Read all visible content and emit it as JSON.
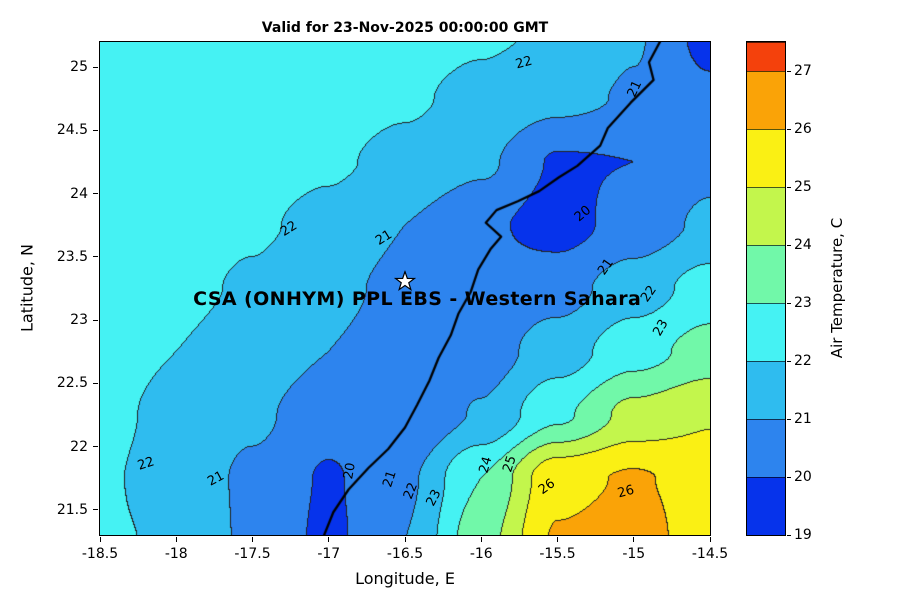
{
  "title": "Valid for 23-Nov-2025 00:00:00 GMT",
  "axes": {
    "xlabel": "Longitude, E",
    "ylabel": "Latitude, N",
    "xtick_values": [
      -18.5,
      -18,
      -17.5,
      -17,
      -16.5,
      -16,
      -15.5,
      -15,
      -14.5
    ],
    "xtick_labels": [
      "-18.5",
      "-18",
      "-17.5",
      "-17",
      "-16.5",
      "-16",
      "-15.5",
      "-15",
      "-14.5"
    ],
    "ytick_values": [
      21.5,
      22,
      22.5,
      23,
      23.5,
      24,
      24.5,
      25
    ],
    "ytick_labels": [
      "21.5",
      "22",
      "22.5",
      "23",
      "23.5",
      "24",
      "24.5",
      "25"
    ]
  },
  "annotation": {
    "text": "CSA (ONHYM) PPL EBS - Western Sahara",
    "lon": -16.42,
    "lat": 23.17,
    "marker": "white-star",
    "marker_lon": -16.5,
    "marker_lat": 23.3
  },
  "colorbar": {
    "label": "Air Temperature, C",
    "range": [
      19,
      27.5
    ],
    "tick_values": [
      19,
      20,
      21,
      22,
      23,
      24,
      25,
      26,
      27
    ],
    "tick_labels": [
      "19",
      "20",
      "21",
      "22",
      "23",
      "24",
      "25",
      "26",
      "27"
    ],
    "cells": [
      {
        "from": 19,
        "to": 20,
        "color": "#0633EB"
      },
      {
        "from": 20,
        "to": 21,
        "color": "#2D84EE"
      },
      {
        "from": 21,
        "to": 22,
        "color": "#2FBCEF"
      },
      {
        "from": 22,
        "to": 23,
        "color": "#45F2F3"
      },
      {
        "from": 23,
        "to": 24,
        "color": "#71F8A9"
      },
      {
        "from": 24,
        "to": 25,
        "color": "#C3F64C"
      },
      {
        "from": 25,
        "to": 26,
        "color": "#FAF014"
      },
      {
        "from": 26,
        "to": 27,
        "color": "#FAA307"
      },
      {
        "from": 27,
        "to": 27.5,
        "color": "#F4410C"
      }
    ]
  },
  "chart_data": {
    "type": "heatmap",
    "subtype": "filled_contour",
    "title": "Valid for 23-Nov-2025 00:00:00 GMT",
    "xlabel": "Longitude, E",
    "ylabel": "Latitude, N",
    "zlabel": "Air Temperature, C",
    "xlim": [
      -18.5,
      -14.5
    ],
    "ylim": [
      21.3,
      25.2
    ],
    "contour_levels": [
      19,
      20,
      21,
      22,
      23,
      24,
      25,
      26,
      27
    ],
    "band_colors": [
      "#0633EB",
      "#2D84EE",
      "#2FBCEF",
      "#45F2F3",
      "#71F8A9",
      "#C3F64C",
      "#FAF014",
      "#FAA307",
      "#F4410C"
    ],
    "contour_line_color": "#222222",
    "grid": {
      "lons": [
        -18.5,
        -18,
        -17.5,
        -17,
        -16.5,
        -16,
        -15.5,
        -15,
        -14.5
      ],
      "lats": [
        25.25,
        24.75,
        24.25,
        23.75,
        23.25,
        22.75,
        22.25,
        21.75,
        21.25
      ],
      "temps_c": [
        [
          22.7,
          22.6,
          22.5,
          22.4,
          22.3,
          22.1,
          21.9,
          21.1,
          19.7
        ],
        [
          22.6,
          22.5,
          22.4,
          22.3,
          22.1,
          21.8,
          21.3,
          20.9,
          20.2
        ],
        [
          22.6,
          22.5,
          22.3,
          22.1,
          21.8,
          21.2,
          19.9,
          20.0,
          20.7
        ],
        [
          22.5,
          22.35,
          22.1,
          21.8,
          21.0,
          20.2,
          19.6,
          20.4,
          21.2
        ],
        [
          22.4,
          22.2,
          21.9,
          21.3,
          20.7,
          20.3,
          20.6,
          21.5,
          22.4
        ],
        [
          22.3,
          22.0,
          21.6,
          21.0,
          20.4,
          20.5,
          21.5,
          22.6,
          23.4
        ],
        [
          22.2,
          21.8,
          21.2,
          20.4,
          20.0,
          21.1,
          22.8,
          24.3,
          24.9
        ],
        [
          22.1,
          21.7,
          20.8,
          19.9,
          20.8,
          23.0,
          25.7,
          26.1,
          25.6
        ],
        [
          22.1,
          21.9,
          20.8,
          19.8,
          21.0,
          23.6,
          26.1,
          26.4,
          25.5
        ]
      ]
    },
    "contour_labels": [
      {
        "text": "22",
        "lon": -15.72,
        "lat": 25.03,
        "rot": -15
      },
      {
        "text": "21",
        "lon": -14.99,
        "lat": 24.83,
        "rot": -65
      },
      {
        "text": "22",
        "lon": -17.26,
        "lat": 23.72,
        "rot": -32
      },
      {
        "text": "21",
        "lon": -16.64,
        "lat": 23.65,
        "rot": -32
      },
      {
        "text": "20",
        "lon": -15.33,
        "lat": 23.84,
        "rot": -40
      },
      {
        "text": "21",
        "lon": -15.18,
        "lat": 23.42,
        "rot": -55
      },
      {
        "text": "22",
        "lon": -14.9,
        "lat": 23.21,
        "rot": -55
      },
      {
        "text": "23",
        "lon": -14.82,
        "lat": 22.94,
        "rot": -60
      },
      {
        "text": "22",
        "lon": -18.2,
        "lat": 21.86,
        "rot": -18
      },
      {
        "text": "21",
        "lon": -17.74,
        "lat": 21.74,
        "rot": -28
      },
      {
        "text": "20",
        "lon": -16.86,
        "lat": 21.81,
        "rot": -80
      },
      {
        "text": "21",
        "lon": -16.6,
        "lat": 21.74,
        "rot": -72
      },
      {
        "text": "22",
        "lon": -16.46,
        "lat": 21.65,
        "rot": -68
      },
      {
        "text": "23",
        "lon": -16.31,
        "lat": 21.59,
        "rot": -62
      },
      {
        "text": "24",
        "lon": -15.97,
        "lat": 21.85,
        "rot": -74
      },
      {
        "text": "25",
        "lon": -15.81,
        "lat": 21.86,
        "rot": -72
      },
      {
        "text": "26",
        "lon": -15.57,
        "lat": 21.68,
        "rot": -35
      },
      {
        "text": "26",
        "lon": -15.05,
        "lat": 21.64,
        "rot": -15
      }
    ],
    "coastline": [
      [
        -14.82,
        25.22
      ],
      [
        -14.9,
        25.04
      ],
      [
        -14.87,
        24.9
      ],
      [
        -15.02,
        24.72
      ],
      [
        -15.17,
        24.52
      ],
      [
        -15.22,
        24.38
      ],
      [
        -15.37,
        24.22
      ],
      [
        -15.49,
        24.13
      ],
      [
        -15.62,
        24.02
      ],
      [
        -15.76,
        23.94
      ],
      [
        -15.9,
        23.87
      ],
      [
        -15.97,
        23.77
      ],
      [
        -15.87,
        23.66
      ],
      [
        -15.94,
        23.56
      ],
      [
        -16.02,
        23.4
      ],
      [
        -16.07,
        23.22
      ],
      [
        -16.15,
        23.05
      ],
      [
        -16.2,
        22.88
      ],
      [
        -16.28,
        22.7
      ],
      [
        -16.34,
        22.52
      ],
      [
        -16.42,
        22.33
      ],
      [
        -16.5,
        22.15
      ],
      [
        -16.61,
        21.98
      ],
      [
        -16.74,
        21.83
      ],
      [
        -16.87,
        21.66
      ],
      [
        -16.97,
        21.48
      ],
      [
        -17.03,
        21.3
      ]
    ]
  }
}
